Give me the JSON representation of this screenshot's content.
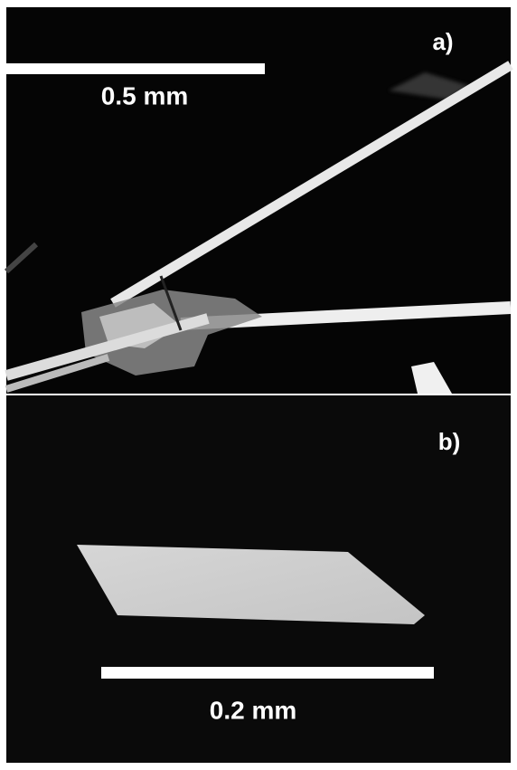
{
  "panels": [
    {
      "label": "a)",
      "scale_bar": "0.5 mm"
    },
    {
      "label": "b)",
      "scale_bar": "0.2 mm"
    }
  ]
}
